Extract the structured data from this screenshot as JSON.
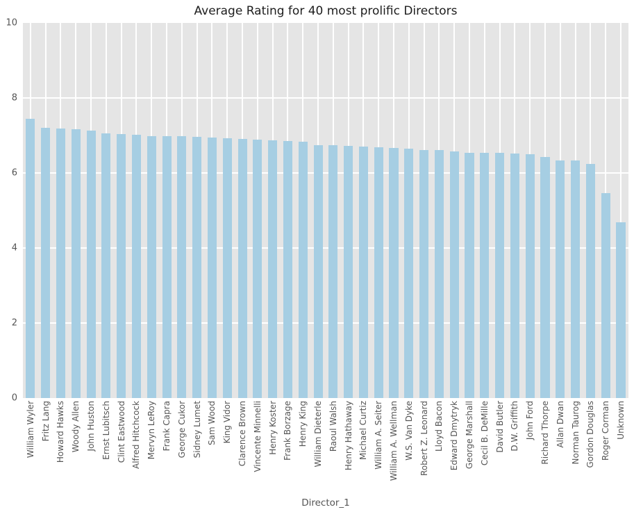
{
  "chart_data": {
    "type": "bar",
    "title": "Average Rating for 40 most prolific Directors",
    "xlabel": "Director_1",
    "ylabel": "",
    "ylim": [
      0,
      10
    ],
    "yticks": [
      0,
      2,
      4,
      6,
      8,
      10
    ],
    "grid": true,
    "legend": "none",
    "bar_color": "#a6cee3",
    "plot_background": "#e5e5e5",
    "gridline_color": "#ffffff",
    "categories": [
      "William Wyler",
      "Fritz Lang",
      "Howard Hawks",
      "Woody Allen",
      "John Huston",
      "Ernst Lubitsch",
      "Clint Eastwood",
      "Alfred Hitchcock",
      "Mervyn LeRoy",
      "Frank Capra",
      "George Cukor",
      "Sidney Lumet",
      "Sam Wood",
      "King Vidor",
      "Clarence Brown",
      "Vincente Minnelli",
      "Henry Koster",
      "Frank Borzage",
      "Henry King",
      "William Dieterle",
      "Raoul Walsh",
      "Henry Hathaway",
      "Michael Curtiz",
      "William A. Seiter",
      "William A. Wellman",
      "W.S. Van Dyke",
      "Robert Z. Leonard",
      "Lloyd Bacon",
      "Edward Dmytryk",
      "George Marshall",
      "Cecil B. DeMille",
      "David Butler",
      "D.W. Griffith",
      "John Ford",
      "Richard Thorpe",
      "Allan Dwan",
      "Norman Taurog",
      "Gordon Douglas",
      "Roger Corman",
      "Unknown"
    ],
    "values": [
      7.45,
      7.2,
      7.18,
      7.17,
      7.13,
      7.06,
      7.04,
      7.01,
      6.99,
      6.98,
      6.98,
      6.97,
      6.94,
      6.93,
      6.9,
      6.88,
      6.87,
      6.86,
      6.83,
      6.75,
      6.74,
      6.72,
      6.71,
      6.68,
      6.67,
      6.65,
      6.62,
      6.61,
      6.58,
      6.54,
      6.53,
      6.53,
      6.52,
      6.5,
      6.42,
      6.34,
      6.33,
      6.25,
      5.47,
      4.68
    ]
  }
}
